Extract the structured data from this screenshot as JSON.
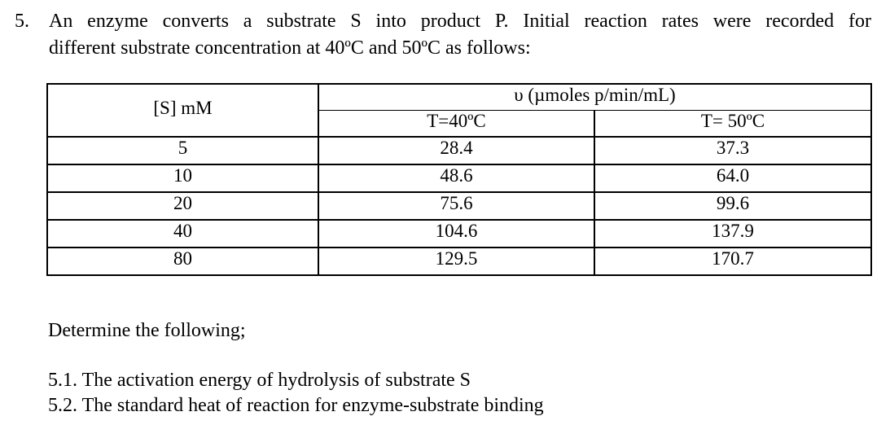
{
  "question": {
    "number": "5.",
    "stem_line1": "An enzyme converts a substrate S into product P. Initial reaction rates were recorded for",
    "stem_line2": "different substrate concentration at 40ºC and 50ºC as follows:"
  },
  "table": {
    "col1_header": "[S] mM",
    "group_header": "υ (µmoles p/min/mL)",
    "sub_headers": [
      "T=40ºC",
      "T= 50ºC"
    ],
    "rows": [
      {
        "s": "5",
        "t40": "28.4",
        "t50": "37.3"
      },
      {
        "s": "10",
        "t40": "48.6",
        "t50": "64.0"
      },
      {
        "s": "20",
        "t40": "75.6",
        "t50": "99.6"
      },
      {
        "s": "40",
        "t40": "104.6",
        "t50": "137.9"
      },
      {
        "s": "80",
        "t40": "129.5",
        "t50": "170.7"
      }
    ]
  },
  "prompt": "Determine the following;",
  "subquestions": [
    "5.1. The activation energy of hydrolysis of substrate S",
    "5.2. The standard heat of reaction for enzyme-substrate binding"
  ]
}
